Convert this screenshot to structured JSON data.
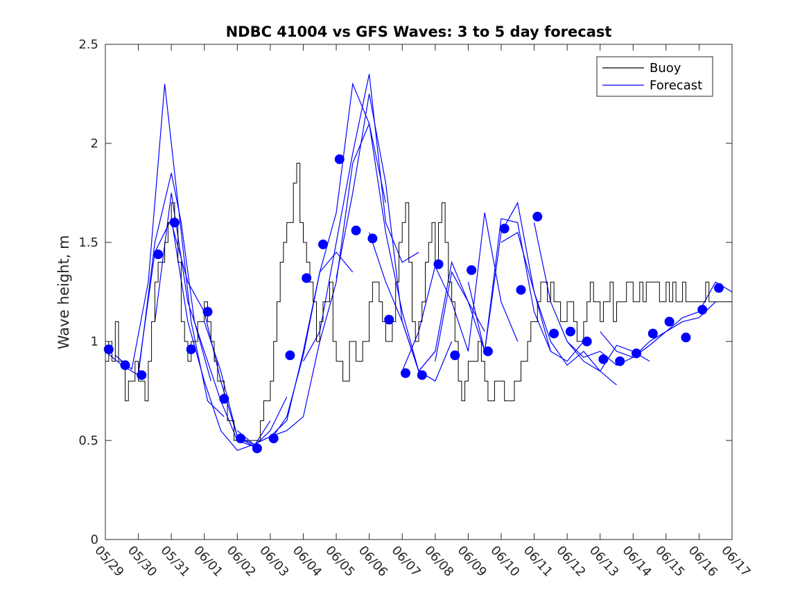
{
  "chart_data": {
    "type": "line",
    "title": "NDBC 41004 vs GFS Waves: 3 to 5 day forecast",
    "xlabel": "",
    "ylabel": "Wave height, m",
    "xlim": [
      "05/29",
      "06/17"
    ],
    "ylim": [
      0,
      2.5
    ],
    "x_ticks": [
      "05/29",
      "05/30",
      "05/31",
      "06/01",
      "06/02",
      "06/03",
      "06/04",
      "06/05",
      "06/06",
      "06/07",
      "06/08",
      "06/09",
      "06/10",
      "06/11",
      "06/12",
      "06/13",
      "06/14",
      "06/15",
      "06/16",
      "06/17"
    ],
    "y_ticks": [
      "0",
      "0.5",
      "1",
      "1.5",
      "2",
      "2.5"
    ],
    "grid": false,
    "legend_position": "top-right",
    "colors": {
      "buoy": "#000000",
      "forecast": "#0000ff",
      "markers": "#0000ff"
    },
    "series": [
      {
        "name": "Buoy",
        "color": "#000000",
        "x": [
          0,
          0.1,
          0.2,
          0.3,
          0.4,
          0.5,
          0.6,
          0.7,
          0.8,
          0.9,
          1.0,
          1.1,
          1.2,
          1.3,
          1.4,
          1.5,
          1.6,
          1.7,
          1.8,
          1.9,
          2.0,
          2.1,
          2.2,
          2.3,
          2.4,
          2.5,
          2.6,
          2.7,
          2.8,
          2.9,
          3.0,
          3.1,
          3.2,
          3.3,
          3.4,
          3.5,
          3.6,
          3.7,
          3.8,
          3.9,
          4.0,
          4.1,
          4.2,
          4.3,
          4.4,
          4.5,
          4.6,
          4.7,
          4.8,
          4.9,
          5.0,
          5.1,
          5.2,
          5.3,
          5.4,
          5.5,
          5.6,
          5.7,
          5.8,
          5.9,
          6.0,
          6.1,
          6.2,
          6.3,
          6.4,
          6.5,
          6.6,
          6.7,
          6.8,
          6.9,
          7.0,
          7.1,
          7.2,
          7.3,
          7.4,
          7.5,
          7.6,
          7.7,
          7.8,
          7.9,
          8.0,
          8.1,
          8.2,
          8.3,
          8.4,
          8.5,
          8.6,
          8.7,
          8.8,
          8.9,
          9.0,
          9.1,
          9.2,
          9.3,
          9.4,
          9.5,
          9.6,
          9.7,
          9.8,
          9.9,
          10.0,
          10.1,
          10.2,
          10.3,
          10.4,
          10.5,
          10.6,
          10.7,
          10.8,
          10.9,
          11.0,
          11.1,
          11.2,
          11.3,
          11.4,
          11.5,
          11.6,
          11.7,
          11.8,
          11.9,
          12.0,
          12.1,
          12.2,
          12.3,
          12.4,
          12.5,
          12.6,
          12.7,
          12.8,
          12.9,
          13.0,
          13.1,
          13.2,
          13.3,
          13.4,
          13.5,
          13.6,
          13.7,
          13.8,
          13.9,
          14.0,
          14.1,
          14.2,
          14.3,
          14.4,
          14.5,
          14.6,
          14.7,
          14.8,
          14.9,
          15.0,
          15.1,
          15.2,
          15.3,
          15.4,
          15.5,
          15.6,
          15.7,
          15.8,
          15.9,
          16.0,
          16.1,
          16.2,
          16.3,
          16.4,
          16.5,
          16.6,
          16.7,
          16.8,
          16.9,
          17.0,
          17.1,
          17.2,
          17.3,
          17.4,
          17.5,
          17.6,
          17.7,
          17.8,
          17.9,
          18.0,
          18.1,
          18.2,
          18.3,
          18.4,
          18.5,
          18.6,
          18.7,
          18.8,
          18.9,
          19.0
        ],
        "values": [
          0.9,
          1.0,
          0.9,
          1.1,
          0.9,
          0.9,
          0.7,
          0.8,
          0.8,
          0.9,
          0.8,
          0.8,
          0.7,
          0.9,
          1.1,
          1.3,
          1.4,
          1.4,
          1.5,
          1.6,
          1.7,
          1.6,
          1.4,
          1.1,
          1.0,
          0.9,
          1.0,
          1.0,
          1.1,
          1.1,
          1.2,
          1.1,
          1.0,
          0.9,
          0.8,
          0.8,
          0.7,
          0.6,
          0.6,
          0.5,
          0.5,
          0.5,
          0.5,
          0.5,
          0.5,
          0.5,
          0.5,
          0.6,
          0.7,
          0.7,
          0.8,
          1.0,
          1.2,
          1.4,
          1.5,
          1.6,
          1.6,
          1.8,
          1.9,
          1.6,
          1.5,
          1.4,
          1.3,
          1.2,
          1.0,
          1.1,
          1.2,
          1.2,
          1.3,
          1.0,
          0.9,
          0.9,
          0.8,
          0.8,
          1.0,
          1.0,
          0.9,
          0.9,
          1.0,
          1.0,
          1.2,
          1.3,
          1.3,
          1.2,
          1.1,
          1.0,
          1.0,
          1.1,
          1.3,
          1.5,
          1.6,
          1.7,
          1.4,
          1.1,
          1.0,
          1.1,
          1.2,
          1.4,
          1.5,
          1.6,
          1.4,
          1.6,
          1.7,
          1.5,
          1.3,
          1.2,
          1.0,
          0.8,
          0.7,
          0.8,
          0.9,
          0.9,
          0.9,
          1.0,
          0.9,
          0.8,
          0.7,
          0.7,
          0.8,
          0.8,
          0.8,
          0.7,
          0.7,
          0.7,
          0.8,
          0.8,
          0.9,
          0.9,
          1.0,
          1.1,
          1.1,
          1.2,
          1.3,
          1.3,
          1.2,
          1.3,
          1.2,
          1.2,
          1.1,
          1.1,
          1.2,
          1.2,
          1.1,
          1.0,
          1.0,
          1.1,
          1.2,
          1.3,
          1.2,
          1.2,
          1.1,
          1.2,
          1.2,
          1.3,
          1.1,
          1.2,
          1.2,
          1.2,
          1.3,
          1.3,
          1.2,
          1.2,
          1.3,
          1.2,
          1.3,
          1.3,
          1.3,
          1.3,
          1.2,
          1.2,
          1.3,
          1.2,
          1.3,
          1.2,
          1.2,
          1.3,
          1.2,
          1.2,
          1.2,
          1.2,
          1.2,
          1.2,
          1.3,
          1.2,
          1.2,
          1.2,
          1.2,
          1.2,
          1.2,
          1.2,
          1.2
        ]
      },
      {
        "name": "Forecast",
        "color": "#0000ff",
        "forecast_runs": [
          {
            "x": [
              0.0,
              0.5,
              1.0,
              1.5,
              2.0,
              2.3,
              2.7,
              3.2
            ],
            "values": [
              0.95,
              0.88,
              0.83,
              1.5,
              1.85,
              1.6,
              1.1,
              0.8
            ]
          },
          {
            "x": [
              0.3,
              0.8,
              1.3,
              1.8,
              2.2,
              2.6,
              3.1,
              3.6
            ],
            "values": [
              0.93,
              0.86,
              1.3,
              2.3,
              1.7,
              1.1,
              0.7,
              0.62
            ]
          },
          {
            "x": [
              1.0,
              1.5,
              2.0,
              2.5,
              3.0,
              3.5,
              4.0,
              4.5
            ],
            "values": [
              0.85,
              1.45,
              1.62,
              1.1,
              0.8,
              0.55,
              0.45,
              0.48
            ]
          },
          {
            "x": [
              1.5,
              2.0,
              2.5,
              3.0,
              3.5,
              4.0,
              4.5,
              5.0
            ],
            "values": [
              1.1,
              1.75,
              1.2,
              0.95,
              0.7,
              0.5,
              0.47,
              0.6
            ]
          },
          {
            "x": [
              2.0,
              2.5,
              3.0,
              3.5,
              4.0,
              4.5,
              5.0,
              5.5
            ],
            "values": [
              1.6,
              1.3,
              1.15,
              0.8,
              0.52,
              0.47,
              0.55,
              0.72
            ]
          },
          {
            "x": [
              3.0,
              3.5,
              4.0,
              4.5,
              5.0,
              5.5,
              6.0,
              6.5
            ],
            "values": [
              1.1,
              0.85,
              0.52,
              0.48,
              0.52,
              0.55,
              0.62,
              1.0
            ]
          },
          {
            "x": [
              4.0,
              4.5,
              5.0,
              5.5,
              6.0,
              6.5,
              7.0,
              7.5
            ],
            "values": [
              0.55,
              0.48,
              0.52,
              0.6,
              0.95,
              1.35,
              1.45,
              1.35
            ]
          },
          {
            "x": [
              5.0,
              5.5,
              6.0,
              6.5,
              7.0,
              7.5,
              8.0,
              8.5
            ],
            "values": [
              0.5,
              0.62,
              0.93,
              1.35,
              1.65,
              2.3,
              2.1,
              1.7
            ]
          },
          {
            "x": [
              6.0,
              6.5,
              7.0,
              7.5,
              8.0,
              8.5,
              9.0,
              9.5
            ],
            "values": [
              0.9,
              1.05,
              1.5,
              1.95,
              2.35,
              1.6,
              1.4,
              1.45
            ]
          },
          {
            "x": [
              6.5,
              7.0,
              7.5,
              8.0,
              8.5,
              9.0,
              9.5,
              10.0
            ],
            "values": [
              1.0,
              1.3,
              1.9,
              2.1,
              1.55,
              1.15,
              0.85,
              0.95
            ]
          },
          {
            "x": [
              7.0,
              7.5,
              8.0,
              8.5,
              9.0,
              9.5,
              10.0,
              10.5
            ],
            "values": [
              1.32,
              1.75,
              2.25,
              1.8,
              1.1,
              0.85,
              0.8,
              1.0
            ]
          },
          {
            "x": [
              8.0,
              8.5,
              9.0,
              9.5,
              10.0,
              10.5,
              11.0,
              11.5
            ],
            "values": [
              1.55,
              1.3,
              1.1,
              0.85,
              0.95,
              1.4,
              1.2,
              1.05
            ]
          },
          {
            "x": [
              9.0,
              9.5,
              10.0,
              10.5,
              11.0,
              11.5,
              12.0,
              12.5
            ],
            "values": [
              0.85,
              1.05,
              1.38,
              1.2,
              0.95,
              1.65,
              1.2,
              1.0
            ]
          },
          {
            "x": [
              10.0,
              10.5,
              11.0,
              11.5,
              12.0,
              12.5,
              13.0,
              13.5
            ],
            "values": [
              0.9,
              1.35,
              1.2,
              0.95,
              1.62,
              1.6,
              1.15,
              0.95
            ]
          },
          {
            "x": [
              11.0,
              11.5,
              12.0,
              12.5,
              13.0,
              13.5,
              14.0,
              14.5
            ],
            "values": [
              1.3,
              0.95,
              1.55,
              1.7,
              1.25,
              0.95,
              0.9,
              1.0
            ]
          },
          {
            "x": [
              12.0,
              12.5,
              13.0,
              13.5,
              14.0,
              14.5,
              15.0,
              15.5
            ],
            "values": [
              1.5,
              1.55,
              1.25,
              1.0,
              0.88,
              0.95,
              0.85,
              0.78
            ]
          },
          {
            "x": [
              13.0,
              13.5,
              14.0,
              14.5,
              15.0,
              15.5,
              16.0,
              16.5
            ],
            "values": [
              1.6,
              1.2,
              1.0,
              0.9,
              0.85,
              0.98,
              0.95,
              0.9
            ]
          },
          {
            "x": [
              14.0,
              14.5,
              15.0,
              15.5,
              16.0,
              16.5,
              17.0,
              17.5
            ],
            "values": [
              1.0,
              0.92,
              0.95,
              0.88,
              0.92,
              1.0,
              1.05,
              1.1
            ]
          },
          {
            "x": [
              15.0,
              15.5,
              16.0,
              16.5,
              17.0,
              17.5,
              18.0,
              18.5
            ],
            "values": [
              1.05,
              0.95,
              0.92,
              0.98,
              1.05,
              1.1,
              1.12,
              1.2
            ]
          },
          {
            "x": [
              16.0,
              16.5,
              17.0,
              17.5,
              18.0,
              18.5,
              19.0
            ],
            "values": [
              0.92,
              0.98,
              1.05,
              1.12,
              1.15,
              1.3,
              1.25
            ]
          }
        ]
      },
      {
        "type": "scatter",
        "color": "#0000ff",
        "x": [
          0.1,
          0.6,
          1.1,
          1.6,
          2.1,
          2.6,
          3.1,
          3.6,
          4.1,
          4.6,
          5.1,
          5.6,
          6.1,
          6.6,
          7.1,
          7.6,
          8.1,
          8.6,
          9.1,
          9.6,
          10.1,
          10.6,
          11.1,
          11.6,
          12.1,
          12.6,
          13.1,
          13.6,
          14.1,
          14.6,
          15.1,
          15.6,
          16.1,
          16.6,
          17.1,
          17.6,
          18.1,
          18.6
        ],
        "values": [
          0.96,
          0.88,
          0.83,
          1.44,
          1.6,
          0.96,
          1.15,
          0.71,
          0.51,
          0.46,
          0.51,
          0.93,
          1.32,
          1.49,
          1.92,
          1.56,
          1.52,
          1.11,
          0.84,
          0.83,
          1.39,
          0.93,
          1.36,
          0.95,
          1.57,
          1.26,
          1.63,
          1.04,
          1.05,
          1.0,
          0.91,
          0.9,
          0.94,
          1.04,
          1.1,
          1.02,
          1.16,
          1.27
        ]
      }
    ]
  }
}
